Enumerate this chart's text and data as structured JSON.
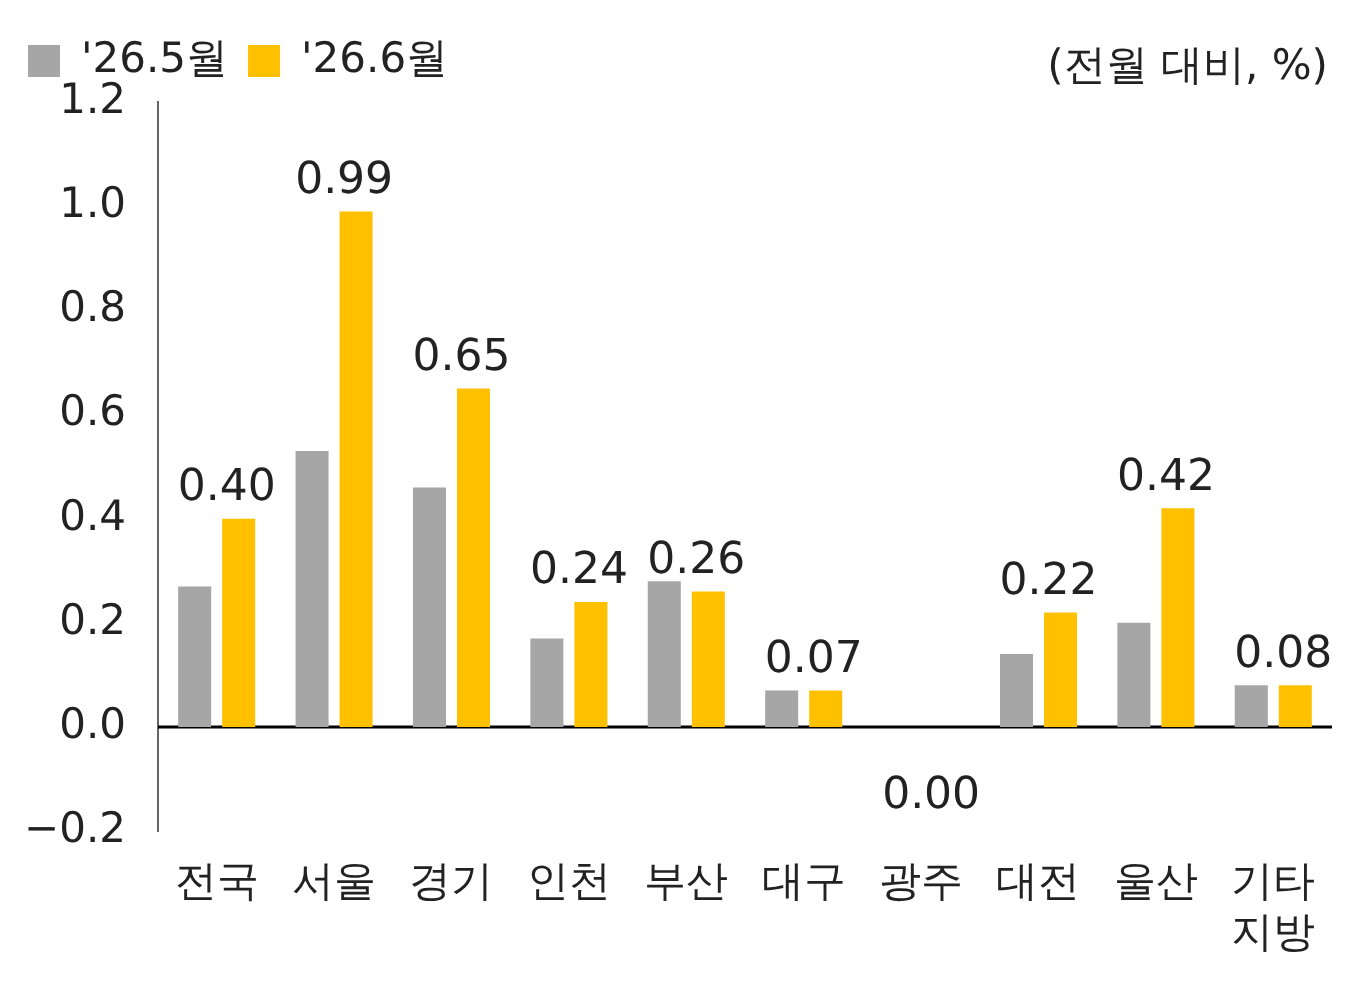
{
  "chart_data": {
    "type": "bar",
    "categories": [
      "전국",
      "서울",
      "경기",
      "인천",
      "부산",
      "대구",
      "광주",
      "대전",
      "울산",
      "기타 지방"
    ],
    "series": [
      {
        "name": "'26.5월",
        "color": "#a6a6a6",
        "values": [
          0.27,
          0.53,
          0.46,
          0.17,
          0.28,
          0.07,
          0.0,
          0.14,
          0.2,
          0.08
        ]
      },
      {
        "name": "'26.6월",
        "color": "#ffc000",
        "values": [
          0.4,
          0.99,
          0.65,
          0.24,
          0.26,
          0.07,
          0.0,
          0.22,
          0.42,
          0.08
        ],
        "value_labels": [
          "0.40",
          "0.99",
          "0.65",
          "0.24",
          "0.26",
          "0.07",
          "0.00",
          "0.22",
          "0.42",
          "0.08"
        ]
      }
    ],
    "ylim": [
      -0.2,
      1.2
    ],
    "yticks": [
      {
        "value": -0.2,
        "label": "−0.2"
      },
      {
        "value": 0,
        "label": "0.0"
      },
      {
        "value": 0.2,
        "label": "0.2"
      },
      {
        "value": 0.4,
        "label": "0.4"
      },
      {
        "value": 0.6,
        "label": "0.6"
      },
      {
        "value": 0.8,
        "label": "0.8"
      },
      {
        "value": 1,
        "label": "1.0"
      },
      {
        "value": 1.2,
        "label": "1.2"
      }
    ],
    "ref_lines": [
      {
        "axis": "y",
        "value": 0,
        "color": "#000000"
      }
    ],
    "grid": false,
    "legend": "top",
    "annotations": [
      "(전월 대비, %)"
    ]
  }
}
